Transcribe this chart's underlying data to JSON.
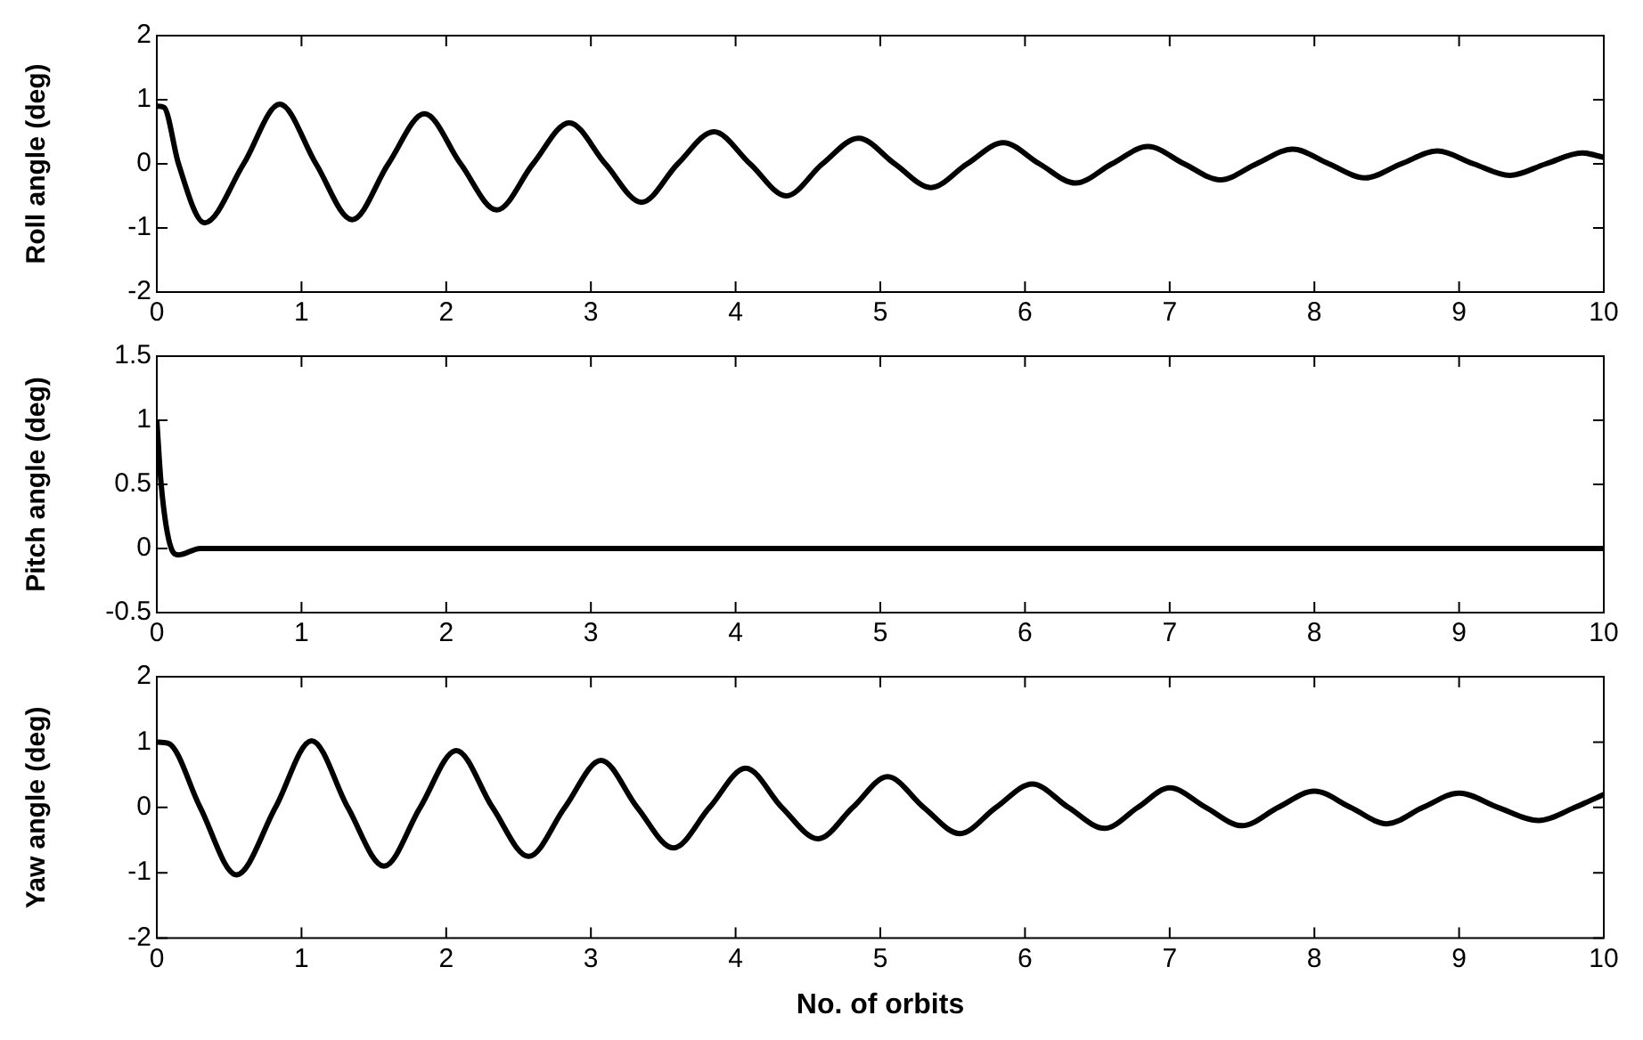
{
  "chart_data": [
    {
      "type": "line",
      "ylabel": "Roll angle (deg)",
      "xlim": [
        0,
        10
      ],
      "xticks": [
        0,
        1,
        2,
        3,
        4,
        5,
        6,
        7,
        8,
        9,
        10
      ],
      "ylim": [
        -2,
        2
      ],
      "yticks": [
        -2,
        -1,
        0,
        1,
        2
      ],
      "grid": false,
      "x": [
        0,
        0.05,
        0.15,
        0.33,
        0.6,
        0.85,
        1.1,
        1.35,
        1.6,
        1.85,
        2.1,
        2.35,
        2.6,
        2.85,
        3.1,
        3.35,
        3.6,
        3.85,
        4.1,
        4.35,
        4.6,
        4.85,
        5.1,
        5.35,
        5.6,
        5.85,
        6.1,
        6.35,
        6.6,
        6.85,
        7.1,
        7.35,
        7.6,
        7.85,
        8.1,
        8.35,
        8.6,
        8.85,
        9.1,
        9.35,
        9.6,
        9.85,
        10
      ],
      "series": [
        {
          "color": "#000000",
          "values": [
            0.9,
            0.88,
            0,
            -0.92,
            0,
            0.93,
            0,
            -0.87,
            0,
            0.78,
            0,
            -0.72,
            0,
            0.64,
            0,
            -0.6,
            0,
            0.5,
            0,
            -0.5,
            0,
            0.4,
            0,
            -0.37,
            0,
            0.33,
            0,
            -0.3,
            0,
            0.27,
            0,
            -0.25,
            0,
            0.23,
            0,
            -0.22,
            0,
            0.2,
            0,
            -0.18,
            0,
            0.17,
            0.1
          ]
        }
      ]
    },
    {
      "type": "line",
      "ylabel": "Pitch angle (deg)",
      "xlim": [
        0,
        10
      ],
      "xticks": [
        0,
        1,
        2,
        3,
        4,
        5,
        6,
        7,
        8,
        9,
        10
      ],
      "ylim": [
        -0.5,
        1.5
      ],
      "yticks": [
        -0.5,
        0,
        0.5,
        1,
        1.5
      ],
      "grid": false,
      "x": [
        0,
        0.03,
        0.1,
        0.15,
        0.3,
        10
      ],
      "series": [
        {
          "color": "#000000",
          "values": [
            1,
            0.5,
            0,
            -0.05,
            0,
            0
          ]
        }
      ]
    },
    {
      "type": "line",
      "ylabel": "Yaw angle (deg)",
      "xlabel": "No. of orbits",
      "xlim": [
        0,
        10
      ],
      "xticks": [
        0,
        1,
        2,
        3,
        4,
        5,
        6,
        7,
        8,
        9,
        10
      ],
      "ylim": [
        -2,
        2
      ],
      "yticks": [
        -2,
        -1,
        0,
        1,
        2
      ],
      "grid": false,
      "x": [
        0,
        0.08,
        0.3,
        0.55,
        0.82,
        1.07,
        1.32,
        1.57,
        1.82,
        2.07,
        2.32,
        2.57,
        2.82,
        3.07,
        3.32,
        3.57,
        3.82,
        4.07,
        4.32,
        4.57,
        4.81,
        5.05,
        5.3,
        5.55,
        5.8,
        6.05,
        6.3,
        6.55,
        6.78,
        7.0,
        7.25,
        7.5,
        7.75,
        8.0,
        8.25,
        8.5,
        8.75,
        9.0,
        9.27,
        9.55,
        9.8,
        10
      ],
      "series": [
        {
          "color": "#000000",
          "values": [
            1,
            0.98,
            0,
            -1.03,
            0,
            1.02,
            0,
            -0.9,
            0,
            0.87,
            0,
            -0.75,
            0,
            0.72,
            0,
            -0.62,
            0,
            0.6,
            0,
            -0.48,
            0,
            0.47,
            0,
            -0.4,
            0,
            0.36,
            0,
            -0.32,
            0,
            0.3,
            0,
            -0.28,
            0,
            0.25,
            0,
            -0.25,
            0,
            0.22,
            0,
            -0.2,
            0,
            0.2
          ]
        }
      ]
    }
  ]
}
